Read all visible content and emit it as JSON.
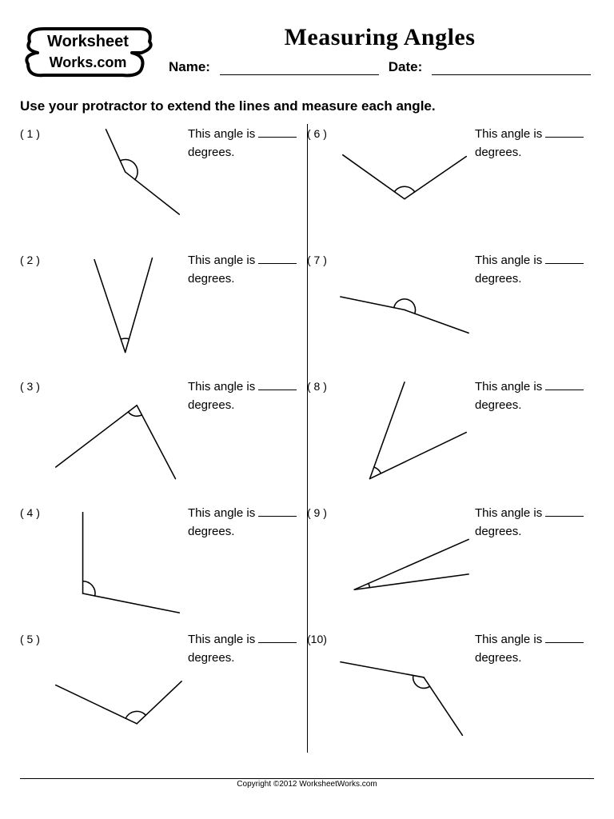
{
  "logo": {
    "top": "Worksheet",
    "bottom": "Works.com"
  },
  "title": "Measuring Angles",
  "name_label": "Name:",
  "date_label": "Date:",
  "instructions": "Use your protractor to extend the lines and measure each angle.",
  "answer_prefix": "This angle is",
  "answer_suffix": "degrees.",
  "footer": "Copyright ©2012 WorksheetWorks.com",
  "stroke_color": "#000000",
  "stroke_width": 1.6,
  "problems": [
    {
      "n": "( 1 )",
      "vertex": [
        95,
        60
      ],
      "ray1_end": [
        70,
        5
      ],
      "ray2_end": [
        165,
        115
      ],
      "arc_r": 16,
      "arc_sweep": 0
    },
    {
      "n": "( 2 )",
      "vertex": [
        95,
        130
      ],
      "ray1_end": [
        55,
        10
      ],
      "ray2_end": [
        130,
        8
      ],
      "arc_r": 18,
      "arc_sweep": 0
    },
    {
      "n": "( 3 )",
      "vertex": [
        110,
        35
      ],
      "ray1_end": [
        5,
        115
      ],
      "ray2_end": [
        160,
        130
      ],
      "arc_r": 14,
      "arc_sweep": 0
    },
    {
      "n": "( 4 )",
      "vertex": [
        40,
        115
      ],
      "ray1_end": [
        40,
        10
      ],
      "ray2_end": [
        165,
        140
      ],
      "arc_r": 16,
      "arc_sweep": 0
    },
    {
      "n": "( 5 )",
      "vertex": [
        110,
        120
      ],
      "ray1_end": [
        5,
        70
      ],
      "ray2_end": [
        168,
        65
      ],
      "arc_r": 16,
      "arc_sweep": 0
    },
    {
      "n": "( 6 )",
      "vertex": [
        85,
        95
      ],
      "ray1_end": [
        5,
        38
      ],
      "ray2_end": [
        165,
        40
      ],
      "arc_r": 16,
      "arc_sweep": 0
    },
    {
      "n": "( 7 )",
      "vertex": [
        85,
        75
      ],
      "ray1_end": [
        2,
        58
      ],
      "ray2_end": [
        168,
        105
      ],
      "arc_r": 14,
      "arc_sweep": 1
    },
    {
      "n": "( 8 )",
      "vertex": [
        40,
        130
      ],
      "ray1_end": [
        85,
        5
      ],
      "ray2_end": [
        165,
        70
      ],
      "arc_r": 16,
      "arc_sweep": 0
    },
    {
      "n": "( 9 )",
      "vertex": [
        20,
        110
      ],
      "ray1_end": [
        168,
        45
      ],
      "ray2_end": [
        168,
        90
      ],
      "arc_r": 20,
      "arc_sweep": 0
    },
    {
      "n": "(10)",
      "vertex": [
        110,
        60
      ],
      "ray1_end": [
        2,
        40
      ],
      "ray2_end": [
        160,
        135
      ],
      "arc_r": 14,
      "arc_sweep": 0
    }
  ]
}
